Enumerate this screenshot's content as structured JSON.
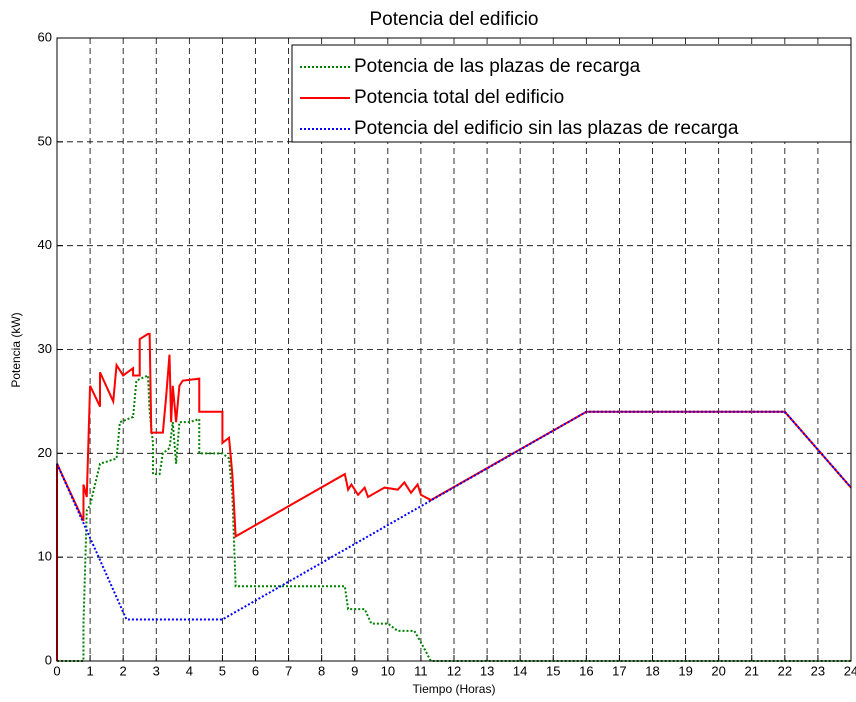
{
  "chart_data": {
    "type": "line",
    "title": "Potencia del edificio",
    "xlabel": "Tiempo (Horas)",
    "ylabel": "Potencia (kW)",
    "xlim": [
      0,
      24
    ],
    "ylim": [
      0,
      60
    ],
    "xticks": [
      0,
      1,
      2,
      3,
      4,
      5,
      6,
      7,
      8,
      9,
      10,
      11,
      12,
      13,
      14,
      15,
      16,
      17,
      18,
      19,
      20,
      21,
      22,
      23,
      24
    ],
    "yticks": [
      0,
      10,
      20,
      30,
      40,
      50,
      60
    ],
    "grid": true,
    "legend": "upper right",
    "series": [
      {
        "name": "Potencia de las plazas de recarga",
        "color": "#008000",
        "style": "dotted",
        "x": [
          0,
          0.8,
          0.8,
          0.9,
          1.0,
          1.3,
          1.8,
          1.9,
          2.3,
          2.4,
          2.75,
          2.8,
          2.9,
          2.9,
          3.1,
          3.2,
          3.4,
          3.5,
          3.6,
          3.7,
          4.0,
          4.3,
          4.3,
          5.0,
          5.2,
          5.3,
          5.4,
          8.7,
          8.8,
          9.3,
          9.5,
          10.0,
          10.3,
          10.8,
          11.0,
          11.3,
          24
        ],
        "values": [
          0,
          0,
          3.5,
          14.5,
          15,
          19,
          19.5,
          23,
          23.5,
          27,
          27.5,
          24,
          21,
          18,
          18,
          20,
          20.5,
          23,
          19,
          23,
          23,
          23.3,
          20,
          20,
          19.5,
          16,
          7.2,
          7.2,
          5,
          5,
          3.6,
          3.6,
          2.9,
          2.9,
          1.8,
          0,
          0
        ]
      },
      {
        "name": "Potencia total del edificio",
        "color": "#ff0000",
        "style": "solid",
        "x": [
          0,
          0,
          0.8,
          0.8,
          0.9,
          1.0,
          1.3,
          1.3,
          1.7,
          1.8,
          2.0,
          2.3,
          2.3,
          2.5,
          2.5,
          2.75,
          2.8,
          2.85,
          3.2,
          3.3,
          3.4,
          3.45,
          3.5,
          3.6,
          3.7,
          3.8,
          4.3,
          4.3,
          5.0,
          5.0,
          5.2,
          5.3,
          5.4,
          8.7,
          8.8,
          8.9,
          9.1,
          9.3,
          9.4,
          9.9,
          10.3,
          10.5,
          10.7,
          10.9,
          11.0,
          11.3,
          16,
          22,
          24
        ],
        "values": [
          0,
          19,
          13.5,
          17,
          15.8,
          26.5,
          24.5,
          27.8,
          25,
          28.5,
          27.5,
          28.2,
          27.5,
          27.5,
          31,
          31.5,
          31.5,
          22,
          22,
          25.5,
          29.5,
          23,
          26.5,
          23,
          26.5,
          27,
          27.2,
          24,
          24,
          21,
          21.5,
          18,
          12,
          18,
          16.5,
          17,
          16,
          16.7,
          15.8,
          16.7,
          16.5,
          17.2,
          16.2,
          17,
          16,
          15.5,
          24,
          24,
          16.7
        ]
      },
      {
        "name": "Potencia del edificio sin las plazas de recarga",
        "color": "#0000ff",
        "style": "dotted",
        "x": [
          0,
          2.1,
          5,
          16,
          22,
          24
        ],
        "values": [
          19,
          4,
          4,
          24,
          24,
          16.7
        ]
      }
    ]
  }
}
